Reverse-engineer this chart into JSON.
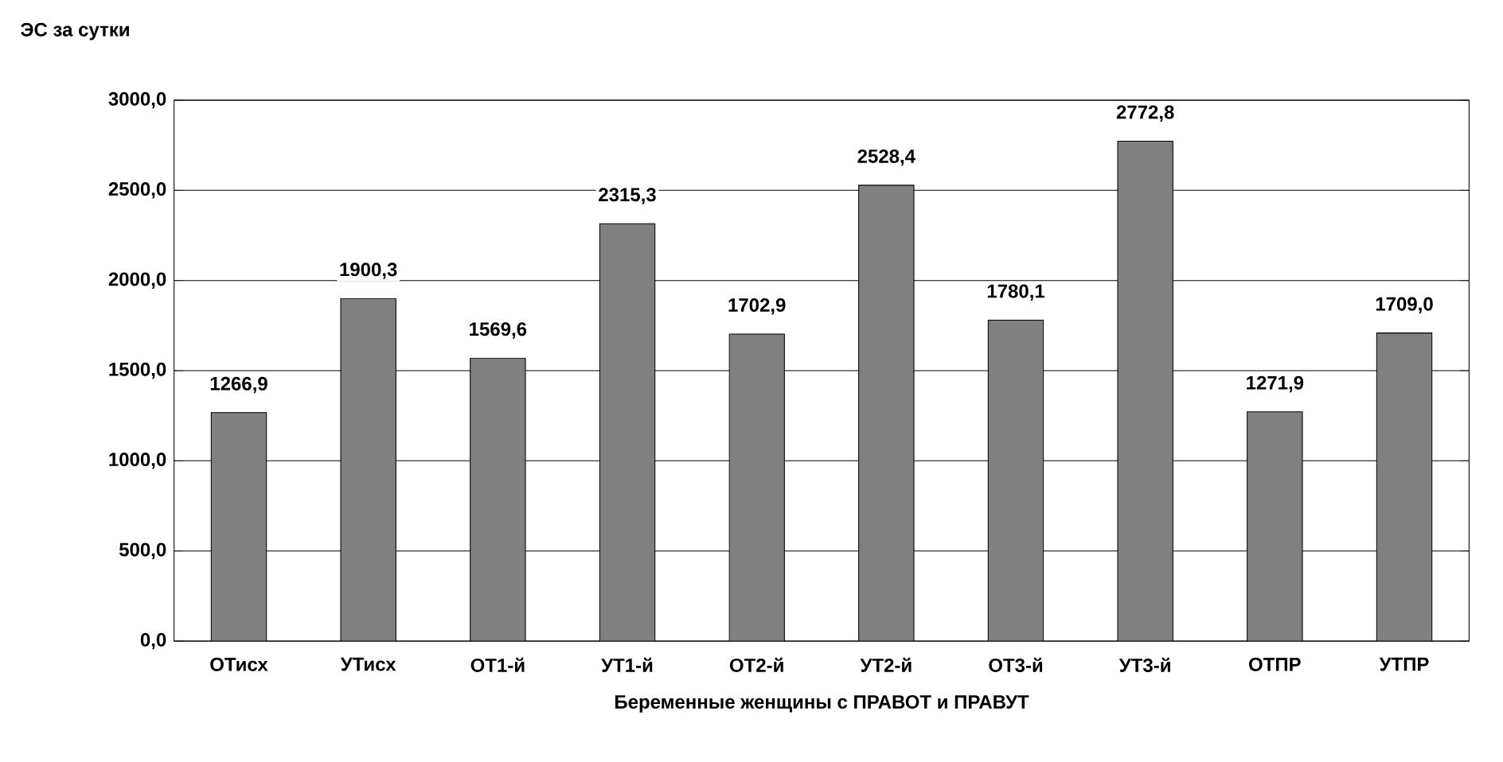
{
  "chart_data": {
    "type": "bar",
    "title": "ЭС за сутки",
    "xlabel": "Беременные женщины с ПРАВОТ и ПРАВУТ",
    "categories": [
      "ОТисх",
      "УТисх",
      "ОТ1-й",
      "УТ1-й",
      "ОТ2-й",
      "УТ2-й",
      "ОТ3-й",
      "УТ3-й",
      "ОТПР",
      "УТПР"
    ],
    "values": [
      1266.9,
      1900.3,
      1569.6,
      2315.3,
      1702.9,
      2528.4,
      1780.1,
      2772.8,
      1271.9,
      1709.0
    ],
    "value_labels": [
      "1266,9",
      "1900,3",
      "1569,6",
      "2315,3",
      "1702,9",
      "2528,4",
      "1780,1",
      "2772,8",
      "1271,9",
      "1709,0"
    ],
    "color": "#808080",
    "ylim": [
      0,
      3000
    ],
    "yticks": [
      {
        "value": 0,
        "label": "0,0"
      },
      {
        "value": 500,
        "label": "500,0"
      },
      {
        "value": 1000,
        "label": "1000,0"
      },
      {
        "value": 1500,
        "label": "1500,0"
      },
      {
        "value": 2000,
        "label": "2000,0"
      },
      {
        "value": 2500,
        "label": "2500,0"
      },
      {
        "value": 3000,
        "label": "3000,0"
      }
    ],
    "grid": "y"
  }
}
